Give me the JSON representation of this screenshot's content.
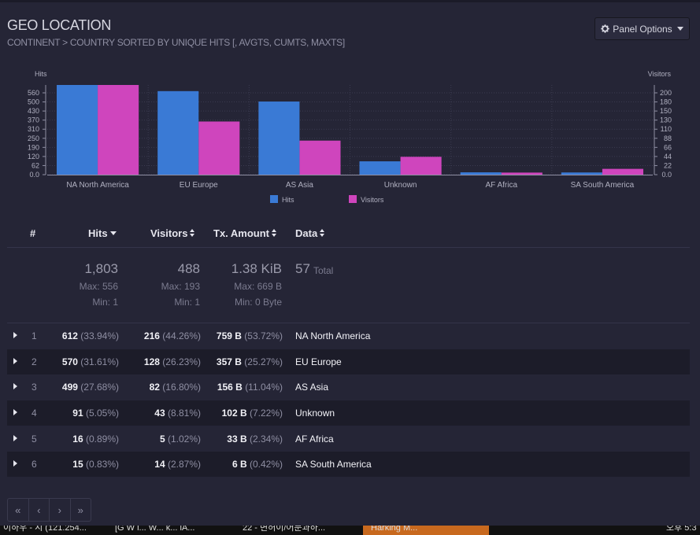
{
  "panel": {
    "title": "GEO LOCATION",
    "subtitle": "CONTINENT > COUNTRY SORTED BY UNIQUE HITS [, AVGTS, CUMTS, MAXTS]",
    "options_label": "Panel Options",
    "options_icon": "gear-icon"
  },
  "chart_data": {
    "type": "bar",
    "categories": [
      "NA North America",
      "EU Europe",
      "AS Asia",
      "Unknown",
      "AF Africa",
      "SA South America"
    ],
    "series": [
      {
        "name": "Hits",
        "axis": "left",
        "color": "#3a7ad5",
        "values": [
          612,
          570,
          499,
          91,
          16,
          15
        ]
      },
      {
        "name": "Visitors",
        "axis": "right",
        "color": "#cf45bd",
        "values": [
          216,
          128,
          82,
          43,
          5,
          14
        ]
      }
    ],
    "y_left": {
      "label": "Hits",
      "ticks": [
        "560",
        "500",
        "430",
        "370",
        "310",
        "250",
        "190",
        "120",
        "62",
        "0.0"
      ],
      "ylim": [
        0,
        612
      ]
    },
    "y_right": {
      "label": "Visitors",
      "ticks": [
        "200",
        "180",
        "150",
        "130",
        "110",
        "88",
        "66",
        "44",
        "22",
        "0.0"
      ],
      "ylim": [
        0,
        216
      ]
    },
    "legend": [
      "Hits",
      "Visitors"
    ],
    "legend_position": "bottom",
    "grid": true
  },
  "table": {
    "headers": {
      "num": "#",
      "hits": "Hits",
      "visitors": "Visitors",
      "tx": "Tx. Amount",
      "data": "Data"
    },
    "summary": {
      "hits": "1,803",
      "hits_max": "Max: 556",
      "hits_min": "Min: 1",
      "visitors": "488",
      "visitors_max": "Max: 193",
      "visitors_min": "Min: 1",
      "tx": "1.38 KiB",
      "tx_max": "Max: 669 B",
      "tx_min": "Min: 0 Byte",
      "data_total": "57",
      "data_total_label": "Total"
    },
    "rows": [
      {
        "idx": "1",
        "hits": "612",
        "hits_pct": "(33.94%)",
        "visitors": "216",
        "visitors_pct": "(44.26%)",
        "tx": "759 B",
        "tx_pct": "(53.72%)",
        "data": "NA North America"
      },
      {
        "idx": "2",
        "hits": "570",
        "hits_pct": "(31.61%)",
        "visitors": "128",
        "visitors_pct": "(26.23%)",
        "tx": "357 B",
        "tx_pct": "(25.27%)",
        "data": "EU Europe"
      },
      {
        "idx": "3",
        "hits": "499",
        "hits_pct": "(27.68%)",
        "visitors": "82",
        "visitors_pct": "(16.80%)",
        "tx": "156 B",
        "tx_pct": "(11.04%)",
        "data": "AS Asia"
      },
      {
        "idx": "4",
        "hits": "91",
        "hits_pct": "(5.05%)",
        "visitors": "43",
        "visitors_pct": "(8.81%)",
        "tx": "102 B",
        "tx_pct": "(7.22%)",
        "data": "Unknown"
      },
      {
        "idx": "5",
        "hits": "16",
        "hits_pct": "(0.89%)",
        "visitors": "5",
        "visitors_pct": "(1.02%)",
        "tx": "33 B",
        "tx_pct": "(2.34%)",
        "data": "AF Africa"
      },
      {
        "idx": "6",
        "hits": "15",
        "hits_pct": "(0.83%)",
        "visitors": "14",
        "visitors_pct": "(2.87%)",
        "tx": "6 B",
        "tx_pct": "(0.42%)",
        "data": "SA South America"
      }
    ]
  },
  "pager": {
    "first": "«",
    "prev": "‹",
    "next": "›",
    "last": "»"
  },
  "taskbar": {
    "items": [
      "이하우 - 시 (121.254...",
      "[G W i... W... k... iA...",
      "22 - 면허이/어문과하...",
      "Harking M..."
    ],
    "clock": "오후 5:3"
  }
}
